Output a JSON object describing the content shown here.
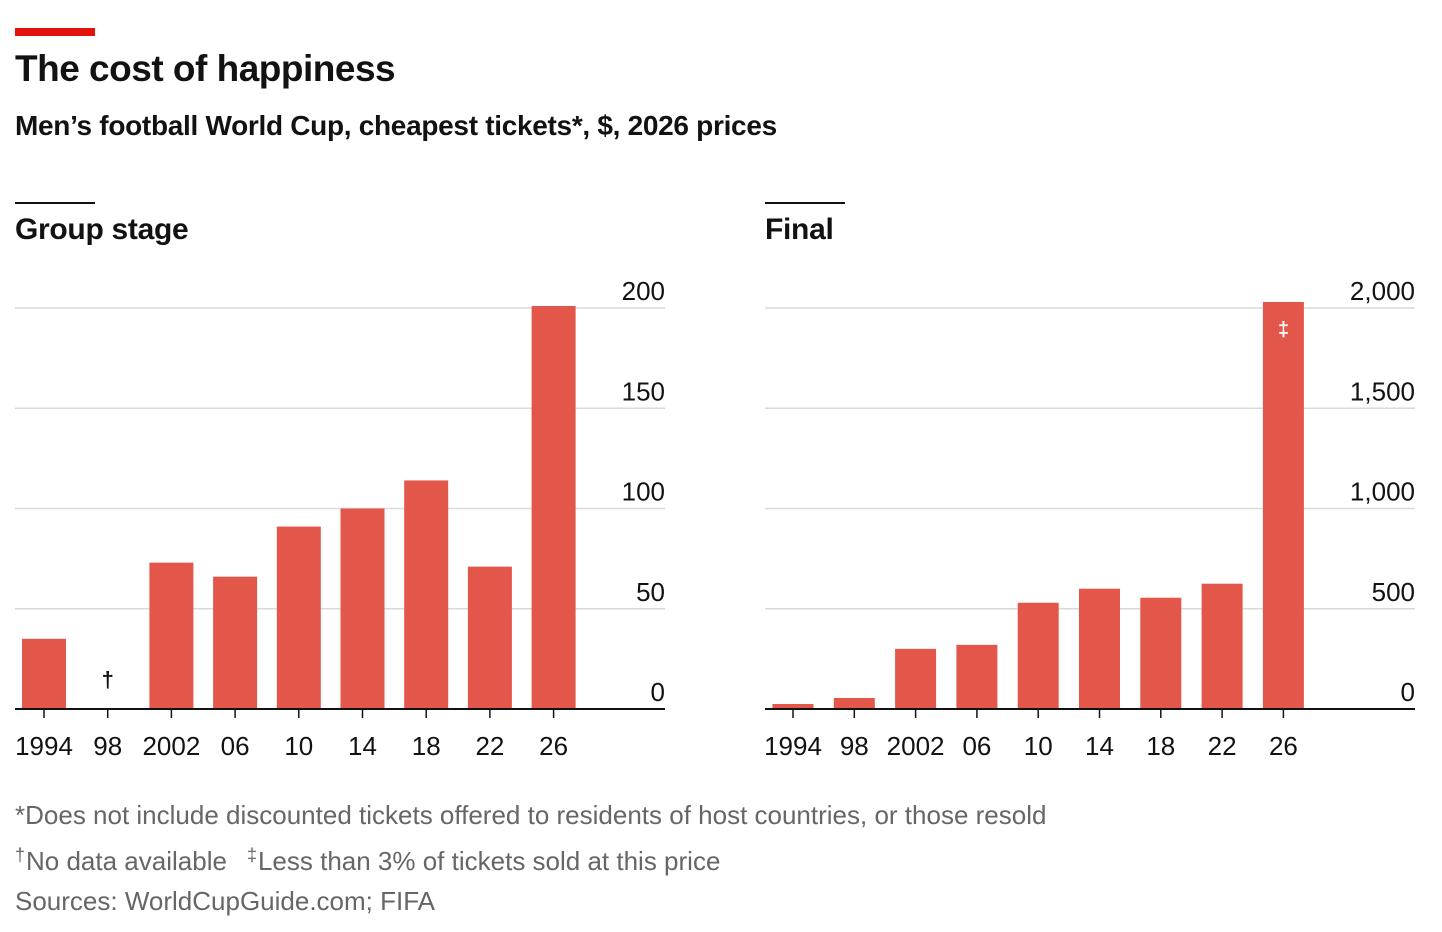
{
  "header": {
    "title": "The cost of happiness",
    "subtitle": "Men’s football World Cup, cheapest tickets*, $, 2026 prices"
  },
  "colors": {
    "bar": "#e3574a",
    "accent_rule": "#e3120b",
    "grid": "#d9d9d9",
    "axis": "#121212",
    "note_text": "#666666"
  },
  "chart_data": [
    {
      "type": "bar",
      "panel_title": "Group stage",
      "categories": [
        "1994",
        "98",
        "2002",
        "06",
        "10",
        "14",
        "18",
        "22",
        "26"
      ],
      "values": [
        35,
        null,
        73,
        66,
        91,
        100,
        114,
        71,
        201
      ],
      "ylim": [
        0,
        200
      ],
      "yticks": [
        0,
        50,
        100,
        150,
        200
      ],
      "ytick_labels": [
        "0",
        "50",
        "100",
        "150",
        "200"
      ],
      "y_axis_side": "right",
      "grid": true,
      "annotations": [
        {
          "category": "98",
          "symbol": "†"
        }
      ]
    },
    {
      "type": "bar",
      "panel_title": "Final",
      "categories": [
        "1994",
        "98",
        "2002",
        "06",
        "10",
        "14",
        "18",
        "22",
        "26"
      ],
      "values": [
        25,
        55,
        300,
        320,
        530,
        600,
        555,
        625,
        2030
      ],
      "ylim": [
        0,
        2000
      ],
      "yticks": [
        0,
        500,
        1000,
        1500,
        2000
      ],
      "ytick_labels": [
        "0",
        "500",
        "1,000",
        "1,500",
        "2,000"
      ],
      "y_axis_side": "right",
      "grid": true,
      "annotations": [
        {
          "category": "26",
          "symbol": "‡"
        }
      ]
    }
  ],
  "footnotes": {
    "note1": "*Does not include discounted tickets offered to residents of host countries, or those resold",
    "dagger_symbol": "†",
    "dagger_text": "No data available",
    "ddagger_symbol": "‡",
    "ddagger_text": "Less than 3% of tickets sold at this price",
    "sources": "Sources: WorldCupGuide.com; FIFA"
  }
}
